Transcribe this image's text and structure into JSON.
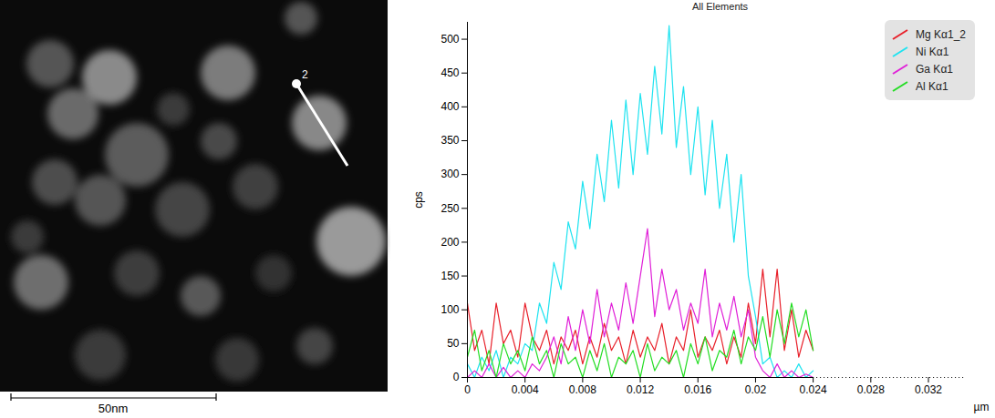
{
  "chart_data": {
    "type": "line",
    "title": "All Elements",
    "xlabel": "µm",
    "ylabel": "cps",
    "xlim": [
      0,
      0.0345
    ],
    "xticks": [
      0,
      0.004,
      0.008,
      0.012,
      0.016,
      0.02,
      0.024,
      0.028,
      0.032
    ],
    "ylim": [
      0,
      525
    ],
    "yticks": [
      0,
      50,
      100,
      150,
      200,
      250,
      300,
      350,
      400,
      450,
      500
    ],
    "legend": "top-right",
    "grid": false,
    "x": [
      0,
      0.0005,
      0.001,
      0.0015,
      0.002,
      0.0025,
      0.003,
      0.0035,
      0.004,
      0.0045,
      0.005,
      0.0055,
      0.006,
      0.0065,
      0.007,
      0.0075,
      0.008,
      0.0085,
      0.009,
      0.0095,
      0.01,
      0.0105,
      0.011,
      0.0115,
      0.012,
      0.0125,
      0.013,
      0.0135,
      0.014,
      0.0145,
      0.015,
      0.0155,
      0.016,
      0.0165,
      0.017,
      0.0175,
      0.018,
      0.0185,
      0.019,
      0.0195,
      0.02,
      0.0205,
      0.021,
      0.0215,
      0.022,
      0.0225,
      0.023,
      0.0235,
      0.024
    ],
    "series": [
      {
        "name": "Mg Kα1_2",
        "color": "#e8202a",
        "values": [
          110,
          40,
          70,
          20,
          110,
          50,
          70,
          30,
          110,
          60,
          40,
          70,
          20,
          60,
          40,
          70,
          20,
          60,
          30,
          80,
          40,
          60,
          20,
          70,
          30,
          60,
          40,
          80,
          20,
          60,
          40,
          100,
          30,
          60,
          40,
          70,
          20,
          60,
          30,
          110,
          50,
          160,
          60,
          160,
          40,
          100,
          30,
          70,
          40
        ]
      },
      {
        "name": "Ni Kα1",
        "color": "#1ee3f0",
        "values": [
          20,
          0,
          30,
          10,
          40,
          0,
          30,
          20,
          50,
          40,
          110,
          80,
          170,
          130,
          230,
          190,
          290,
          220,
          330,
          260,
          380,
          280,
          410,
          300,
          420,
          330,
          460,
          360,
          520,
          340,
          430,
          300,
          400,
          270,
          380,
          250,
          330,
          200,
          300,
          150,
          90,
          20,
          30,
          0,
          10,
          0,
          20,
          0,
          10
        ]
      },
      {
        "name": "Ga Kα1",
        "color": "#e020d8",
        "values": [
          0,
          10,
          0,
          20,
          0,
          15,
          0,
          10,
          0,
          20,
          10,
          30,
          60,
          20,
          90,
          40,
          100,
          50,
          130,
          60,
          110,
          70,
          140,
          80,
          150,
          220,
          90,
          160,
          100,
          130,
          70,
          110,
          80,
          160,
          60,
          110,
          70,
          120,
          60,
          100,
          30,
          10,
          0,
          20,
          0,
          10,
          0,
          5,
          0
        ]
      },
      {
        "name": "Al Kα1",
        "color": "#22dd22",
        "values": [
          30,
          70,
          10,
          40,
          0,
          50,
          20,
          40,
          10,
          60,
          20,
          40,
          0,
          50,
          20,
          30,
          0,
          40,
          10,
          50,
          0,
          30,
          20,
          40,
          0,
          50,
          10,
          30,
          20,
          40,
          0,
          50,
          20,
          60,
          10,
          40,
          30,
          70,
          20,
          60,
          40,
          90,
          30,
          100,
          50,
          110,
          60,
          100,
          40
        ]
      }
    ]
  },
  "image": {
    "line_label": "2",
    "scale_bar": "50nm"
  }
}
